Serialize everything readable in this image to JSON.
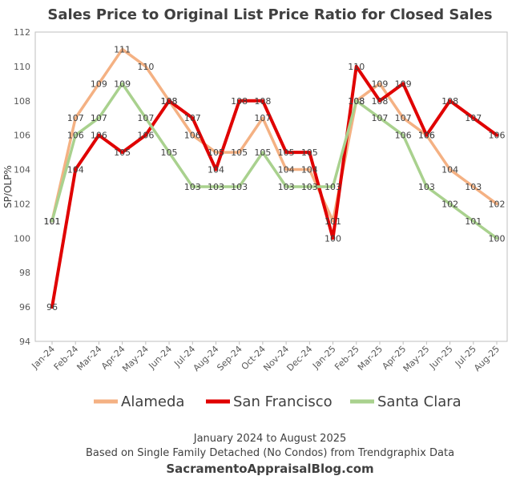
{
  "chart_data": {
    "type": "line",
    "title": "Sales Price to Original List Price Ratio for Closed Sales",
    "ylabel": "SP/OLP%",
    "xlabel": "",
    "ylim": [
      94,
      112
    ],
    "yticks": [
      94,
      96,
      98,
      100,
      102,
      104,
      106,
      108,
      110,
      112
    ],
    "grid": false,
    "legend_position": "bottom",
    "categories": [
      "Jan-24",
      "Feb-24",
      "Mar-24",
      "Apr-24",
      "May-24",
      "Jun-24",
      "Jul-24",
      "Aug-24",
      "Sep-24",
      "Oct-24",
      "Nov-24",
      "Dec-24",
      "Jan-25",
      "Feb-25",
      "Mar-25",
      "Apr-25",
      "May-25",
      "Jun-25",
      "Jul-25",
      "Aug-25"
    ],
    "series": [
      {
        "name": "Alameda",
        "color": "#F4B183",
        "values": [
          101,
          107,
          109,
          111,
          110,
          108,
          106,
          105,
          105,
          107,
          104,
          104,
          101,
          108,
          109,
          107,
          106,
          104,
          103,
          102
        ]
      },
      {
        "name": "San Francisco",
        "color": "#E00000",
        "values": [
          96,
          104,
          106,
          105,
          106,
          108,
          107,
          104,
          108,
          108,
          105,
          105,
          100,
          110,
          108,
          109,
          106,
          108,
          107,
          106
        ]
      },
      {
        "name": "Santa Clara",
        "color": "#A9D18E",
        "values": [
          101,
          106,
          107,
          109,
          107,
          105,
          103,
          103,
          103,
          105,
          103,
          103,
          103,
          108,
          107,
          106,
          103,
          102,
          101,
          100
        ]
      }
    ]
  },
  "footer": {
    "line1": "January 2024 to August 2025",
    "line2": "Based on Single Family Detached (No Condos) from Trendgraphix Data",
    "line3": "SacramentoAppraisalBlog.com"
  }
}
